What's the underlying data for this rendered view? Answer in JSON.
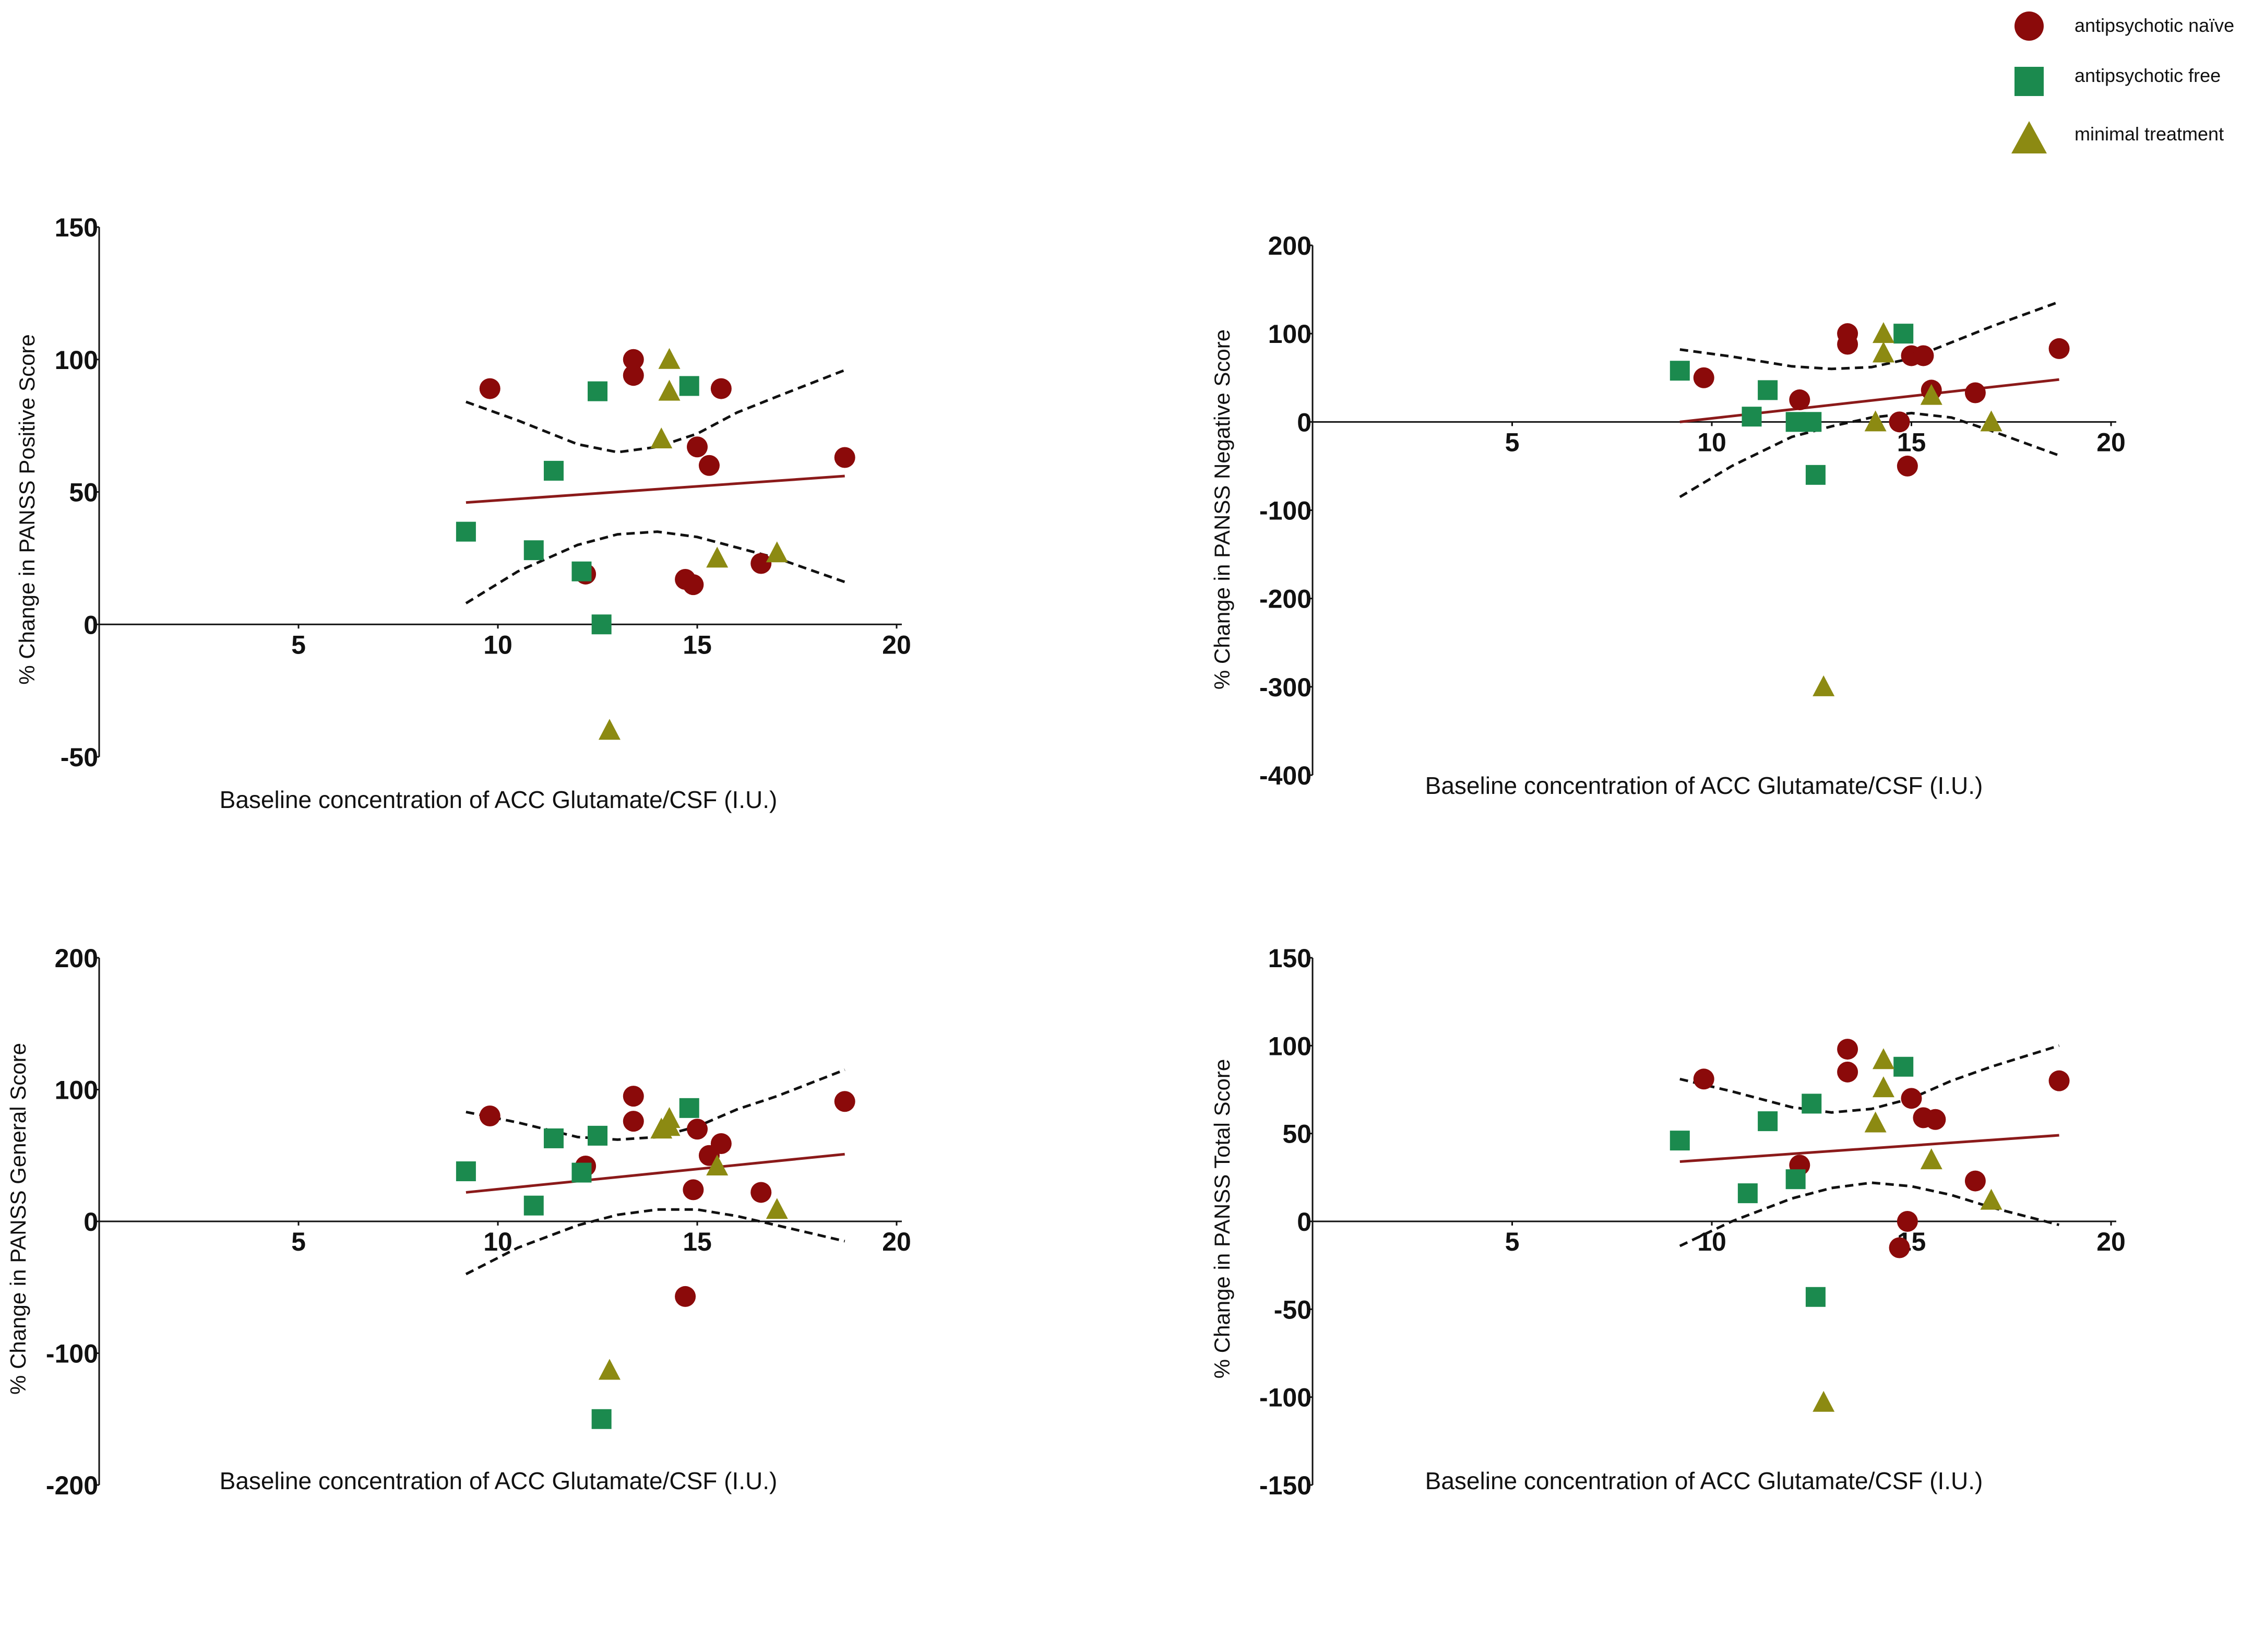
{
  "legend": {
    "items": [
      {
        "label": "antipsychotic naïve",
        "shape": "circle",
        "color": "#8b0a0a"
      },
      {
        "label": "antipsychotic free",
        "shape": "square",
        "color": "#1b8a4e"
      },
      {
        "label": "minimal treatment",
        "shape": "triangle",
        "color": "#8c8a12"
      }
    ]
  },
  "colors": {
    "naive": "#8b0a0a",
    "free": "#1b8a4e",
    "minimal": "#8c8a12",
    "fit": "#8b1a1a",
    "axis": "#111111"
  },
  "chart_data": [
    {
      "type": "scatter",
      "title": "",
      "xlabel": "Baseline concentration of ACC Glutamate/CSF (I.U.)",
      "ylabel": "% Change in PANSS Positive Score",
      "xlim": [
        0,
        20
      ],
      "ylim": [
        -50,
        150
      ],
      "xticks": [
        5,
        10,
        15,
        20
      ],
      "yticks": [
        -50,
        0,
        50,
        100,
        150
      ],
      "series": [
        {
          "name": "antipsychotic naïve",
          "points": [
            [
              9.8,
              89
            ],
            [
              13.4,
              100
            ],
            [
              13.4,
              94
            ],
            [
              15.6,
              89
            ],
            [
              15.0,
              67
            ],
            [
              15.3,
              60
            ],
            [
              18.7,
              63
            ],
            [
              12.2,
              19
            ],
            [
              14.7,
              17
            ],
            [
              14.9,
              15
            ],
            [
              16.6,
              23
            ]
          ]
        },
        {
          "name": "antipsychotic free",
          "points": [
            [
              9.2,
              35
            ],
            [
              11.4,
              58
            ],
            [
              12.5,
              88
            ],
            [
              14.8,
              90
            ],
            [
              10.9,
              28
            ],
            [
              12.1,
              20
            ],
            [
              12.6,
              0
            ]
          ]
        },
        {
          "name": "minimal treatment",
          "points": [
            [
              14.3,
              100
            ],
            [
              14.3,
              88
            ],
            [
              14.1,
              70
            ],
            [
              15.5,
              25
            ],
            [
              17.0,
              27
            ],
            [
              12.8,
              -40
            ]
          ]
        }
      ],
      "fit": {
        "x": [
          9.2,
          18.7
        ],
        "y": [
          46,
          56
        ]
      },
      "ci_upper": {
        "x": [
          9.2,
          10.5,
          12.0,
          13.0,
          14.0,
          15.0,
          16.0,
          17.0,
          18.7
        ],
        "y": [
          84,
          77,
          68,
          65,
          67,
          72,
          80,
          86,
          96
        ]
      },
      "ci_lower": {
        "x": [
          9.2,
          10.5,
          12.0,
          13.0,
          14.0,
          15.0,
          16.0,
          17.0,
          18.7
        ],
        "y": [
          8,
          20,
          30,
          34,
          35,
          33,
          29,
          25,
          16
        ]
      }
    },
    {
      "type": "scatter",
      "title": "",
      "xlabel": "Baseline concentration of ACC Glutamate/CSF (I.U.)",
      "ylabel": "% Change in PANSS Negative Score",
      "xlim": [
        0,
        20
      ],
      "ylim": [
        -400,
        200
      ],
      "xticks": [
        5,
        10,
        15,
        20
      ],
      "yticks": [
        -400,
        -300,
        -200,
        -100,
        0,
        100,
        200
      ],
      "series": [
        {
          "name": "antipsychotic naïve",
          "points": [
            [
              9.8,
              50
            ],
            [
              12.2,
              25
            ],
            [
              13.4,
              100
            ],
            [
              13.4,
              88
            ],
            [
              15.0,
              75
            ],
            [
              15.3,
              75
            ],
            [
              15.5,
              36
            ],
            [
              16.6,
              33
            ],
            [
              18.7,
              83
            ],
            [
              14.7,
              0
            ],
            [
              14.9,
              -50
            ]
          ]
        },
        {
          "name": "antipsychotic free",
          "points": [
            [
              9.2,
              58
            ],
            [
              11.4,
              36
            ],
            [
              11.0,
              6
            ],
            [
              12.1,
              0
            ],
            [
              12.5,
              0
            ],
            [
              12.6,
              -60
            ],
            [
              14.8,
              100
            ]
          ]
        },
        {
          "name": "minimal treatment",
          "points": [
            [
              14.3,
              100
            ],
            [
              14.3,
              78
            ],
            [
              14.1,
              0
            ],
            [
              15.5,
              30
            ],
            [
              17.0,
              0
            ],
            [
              12.8,
              -300
            ]
          ]
        }
      ],
      "fit": {
        "x": [
          9.2,
          18.7
        ],
        "y": [
          0,
          48
        ]
      },
      "ci_upper": {
        "x": [
          9.2,
          10.5,
          12.0,
          13.0,
          14.0,
          15.0,
          16.0,
          17.0,
          18.7
        ],
        "y": [
          82,
          74,
          63,
          60,
          62,
          72,
          90,
          108,
          136
        ]
      },
      "ci_lower": {
        "x": [
          9.2,
          10.5,
          12.0,
          13.0,
          14.0,
          15.0,
          16.0,
          17.0,
          18.7
        ],
        "y": [
          -85,
          -50,
          -17,
          -5,
          5,
          10,
          5,
          -10,
          -38
        ]
      }
    },
    {
      "type": "scatter",
      "title": "",
      "xlabel": "Baseline concentration of ACC Glutamate/CSF (I.U.)",
      "ylabel": "% Change in PANSS General Score",
      "xlim": [
        0,
        20
      ],
      "ylim": [
        -200,
        200
      ],
      "xticks": [
        5,
        10,
        15,
        20
      ],
      "yticks": [
        -200,
        -100,
        0,
        100,
        200
      ],
      "series": [
        {
          "name": "antipsychotic naïve",
          "points": [
            [
              9.8,
              80
            ],
            [
              12.2,
              42
            ],
            [
              13.4,
              95
            ],
            [
              13.4,
              76
            ],
            [
              15.0,
              70
            ],
            [
              15.3,
              50
            ],
            [
              15.6,
              59
            ],
            [
              14.9,
              24
            ],
            [
              16.6,
              22
            ],
            [
              18.7,
              91
            ],
            [
              14.7,
              -57
            ]
          ]
        },
        {
          "name": "antipsychotic free",
          "points": [
            [
              9.2,
              38
            ],
            [
              11.4,
              63
            ],
            [
              12.5,
              65
            ],
            [
              12.1,
              37
            ],
            [
              14.8,
              86
            ],
            [
              10.9,
              12
            ],
            [
              12.6,
              -150
            ]
          ]
        },
        {
          "name": "minimal treatment",
          "points": [
            [
              14.3,
              78
            ],
            [
              14.1,
              70
            ],
            [
              14.3,
              72
            ],
            [
              15.5,
              42
            ],
            [
              17.0,
              9
            ],
            [
              12.8,
              -113
            ]
          ]
        }
      ],
      "fit": {
        "x": [
          9.2,
          18.7
        ],
        "y": [
          22,
          51
        ]
      },
      "ci_upper": {
        "x": [
          9.2,
          10.5,
          12.0,
          13.0,
          14.0,
          15.0,
          16.0,
          17.0,
          18.7
        ],
        "y": [
          83,
          75,
          64,
          62,
          64,
          72,
          85,
          95,
          115
        ]
      },
      "ci_lower": {
        "x": [
          9.2,
          10.5,
          12.0,
          13.0,
          14.0,
          15.0,
          16.0,
          17.0,
          18.7
        ],
        "y": [
          -40,
          -20,
          -3,
          5,
          9,
          9,
          4,
          -3,
          -15
        ]
      }
    },
    {
      "type": "scatter",
      "title": "",
      "xlabel": "Baseline concentration of ACC Glutamate/CSF (I.U.)",
      "ylabel": "% Change in PANSS Total Score",
      "xlim": [
        0,
        20
      ],
      "ylim": [
        -150,
        150
      ],
      "xticks": [
        5,
        10,
        15,
        20
      ],
      "yticks": [
        -150,
        -100,
        -50,
        0,
        50,
        100,
        150
      ],
      "series": [
        {
          "name": "antipsychotic naïve",
          "points": [
            [
              9.8,
              81
            ],
            [
              12.2,
              32
            ],
            [
              13.4,
              98
            ],
            [
              13.4,
              85
            ],
            [
              15.0,
              70
            ],
            [
              15.3,
              59
            ],
            [
              15.6,
              58
            ],
            [
              16.6,
              23
            ],
            [
              18.7,
              80
            ],
            [
              14.9,
              0
            ],
            [
              14.7,
              -15
            ]
          ]
        },
        {
          "name": "antipsychotic free",
          "points": [
            [
              9.2,
              46
            ],
            [
              11.4,
              57
            ],
            [
              12.5,
              67
            ],
            [
              14.8,
              88
            ],
            [
              10.9,
              16
            ],
            [
              12.1,
              24
            ],
            [
              12.6,
              -43
            ]
          ]
        },
        {
          "name": "minimal treatment",
          "points": [
            [
              14.3,
              92
            ],
            [
              14.3,
              76
            ],
            [
              14.1,
              56
            ],
            [
              15.5,
              35
            ],
            [
              17.0,
              12
            ],
            [
              12.8,
              -103
            ]
          ]
        }
      ],
      "fit": {
        "x": [
          9.2,
          18.7
        ],
        "y": [
          34,
          49
        ]
      },
      "ci_upper": {
        "x": [
          9.2,
          10.5,
          12.0,
          13.0,
          14.0,
          15.0,
          16.0,
          17.0,
          18.7
        ],
        "y": [
          81,
          74,
          65,
          62,
          64,
          70,
          80,
          88,
          100
        ]
      },
      "ci_lower": {
        "x": [
          9.2,
          10.5,
          12.0,
          13.0,
          14.0,
          15.0,
          16.0,
          17.0,
          18.7
        ],
        "y": [
          -14,
          0,
          13,
          19,
          22,
          20,
          15,
          8,
          -2
        ]
      }
    }
  ]
}
